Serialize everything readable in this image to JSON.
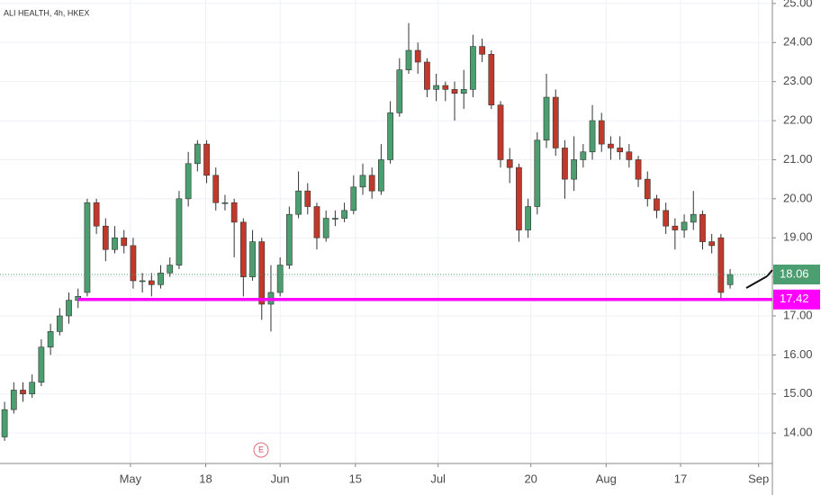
{
  "chart_data": {
    "type": "candlestick",
    "title": "ALI HEALTH, 4h, HKEX",
    "open": [
      13.9,
      14.6,
      15.1,
      15.0,
      15.3,
      16.2,
      16.6,
      17.0,
      17.4,
      17.6,
      19.9,
      19.3,
      18.7,
      19.0,
      18.8,
      17.9,
      17.9,
      17.8,
      18.1,
      18.3,
      20.0,
      20.9,
      21.4,
      20.6,
      19.9,
      19.9,
      19.4,
      18.0,
      18.9,
      17.3,
      17.6,
      18.3,
      19.6,
      20.2,
      19.8,
      19.0,
      19.5,
      19.5,
      19.7,
      20.3,
      20.6,
      20.2,
      21.0,
      22.2,
      23.3,
      23.8,
      23.5,
      22.8,
      22.9,
      22.8,
      22.7,
      22.8,
      23.9,
      23.7,
      22.4,
      21.0,
      20.8,
      19.2,
      19.8,
      21.5,
      22.6,
      21.3,
      20.5,
      21.0,
      21.2,
      22.0,
      21.4,
      21.3,
      21.2,
      21.0,
      20.5,
      20.0,
      19.7,
      19.3,
      19.2,
      19.4,
      19.6,
      18.9,
      19.0,
      17.8
    ],
    "high": [
      14.8,
      15.3,
      15.3,
      15.5,
      16.4,
      16.8,
      17.2,
      17.6,
      17.7,
      20.0,
      20.0,
      19.5,
      19.3,
      19.2,
      19.0,
      18.1,
      18.1,
      18.3,
      18.5,
      20.2,
      21.2,
      21.5,
      21.5,
      20.8,
      20.1,
      20.0,
      19.5,
      19.2,
      19.0,
      18.3,
      18.5,
      19.8,
      20.7,
      20.4,
      19.9,
      19.7,
      19.7,
      19.9,
      20.6,
      20.9,
      20.8,
      21.4,
      22.5,
      23.6,
      24.5,
      24.0,
      23.6,
      23.2,
      23.0,
      23.0,
      23.3,
      24.2,
      24.1,
      23.8,
      22.5,
      21.3,
      20.9,
      20.0,
      21.7,
      23.2,
      22.8,
      21.5,
      21.6,
      21.4,
      22.4,
      22.2,
      21.6,
      21.6,
      21.4,
      21.1,
      20.7,
      20.1,
      19.9,
      19.5,
      19.6,
      20.2,
      19.7,
      19.1,
      19.1,
      18.2
    ],
    "low": [
      13.8,
      14.5,
      14.8,
      14.9,
      15.2,
      16.0,
      16.5,
      16.8,
      17.2,
      17.5,
      19.1,
      18.4,
      18.6,
      18.6,
      17.7,
      17.6,
      17.5,
      17.7,
      18.0,
      18.2,
      19.8,
      20.7,
      20.4,
      19.7,
      19.7,
      18.5,
      17.5,
      17.9,
      16.9,
      16.6,
      17.5,
      18.2,
      19.5,
      19.6,
      18.7,
      18.9,
      19.3,
      19.4,
      19.6,
      20.1,
      20.0,
      20.1,
      20.9,
      22.1,
      23.2,
      23.2,
      22.6,
      22.5,
      22.5,
      22.0,
      22.3,
      22.6,
      23.5,
      22.3,
      20.8,
      20.4,
      18.9,
      19.0,
      19.6,
      21.3,
      21.1,
      20.0,
      20.2,
      20.8,
      21.0,
      21.2,
      21.0,
      21.0,
      20.8,
      20.3,
      19.8,
      19.5,
      19.1,
      18.7,
      19.0,
      19.2,
      18.7,
      18.6,
      17.45,
      17.7
    ],
    "close": [
      14.6,
      15.1,
      15.0,
      15.3,
      16.2,
      16.6,
      17.0,
      17.4,
      17.5,
      19.9,
      19.3,
      18.7,
      19.0,
      18.8,
      17.9,
      17.9,
      17.8,
      18.1,
      18.3,
      20.0,
      20.9,
      21.4,
      20.6,
      19.9,
      19.9,
      19.4,
      18.0,
      18.9,
      17.3,
      17.6,
      18.3,
      19.6,
      20.2,
      19.8,
      19.0,
      19.5,
      19.5,
      19.7,
      20.3,
      20.6,
      20.2,
      21.0,
      22.2,
      23.3,
      23.8,
      23.5,
      22.8,
      22.9,
      22.8,
      22.7,
      22.8,
      23.9,
      23.7,
      22.4,
      21.0,
      20.8,
      19.2,
      19.8,
      21.5,
      22.6,
      21.3,
      20.5,
      21.0,
      21.2,
      22.0,
      21.4,
      21.3,
      21.2,
      21.0,
      20.5,
      20.0,
      19.7,
      19.3,
      19.2,
      19.4,
      19.6,
      18.9,
      18.8,
      17.6,
      18.06
    ],
    "up_color": "#4b9e6f",
    "down_color": "#c0392b",
    "xlim": [
      -0.5,
      83.6
    ],
    "xticks": [
      {
        "value": 13.7,
        "label": "May"
      },
      {
        "value": 21.9,
        "label": "18"
      },
      {
        "value": 30.0,
        "label": "Jun"
      },
      {
        "value": 38.2,
        "label": "15"
      },
      {
        "value": 47.2,
        "label": "Jul"
      },
      {
        "value": 57.3,
        "label": "20"
      },
      {
        "value": 65.5,
        "label": "Aug"
      },
      {
        "value": 73.6,
        "label": "17"
      },
      {
        "value": 82.1,
        "label": "Sep"
      }
    ],
    "ylim": [
      13.22,
      25.09
    ],
    "yticks": [
      {
        "value": 14,
        "label": "14.00"
      },
      {
        "value": 15,
        "label": "15.00"
      },
      {
        "value": 16,
        "label": "16.00"
      },
      {
        "value": 17,
        "label": "17.00"
      },
      {
        "value": 18,
        "label": "18.00"
      },
      {
        "value": 19,
        "label": "19.00"
      },
      {
        "value": 20,
        "label": "20.00"
      },
      {
        "value": 21,
        "label": "21.00"
      },
      {
        "value": 22,
        "label": "22.00"
      },
      {
        "value": 23,
        "label": "23.00"
      },
      {
        "value": 24,
        "label": "24.00"
      },
      {
        "value": 25,
        "label": "25.00"
      }
    ],
    "grid": true,
    "last_price": {
      "value": 18.06,
      "color": "#4b9e6f"
    },
    "level_line": {
      "value": 17.42,
      "color": "#ff00ff"
    },
    "annotation": "E"
  }
}
